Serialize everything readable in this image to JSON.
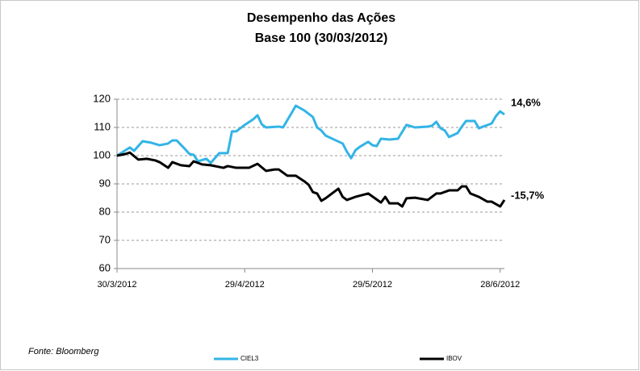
{
  "chart_data": {
    "type": "line",
    "title": "Desempenho das Ações",
    "subtitle": "Base 100 (30/03/2012)",
    "source": "Fonte: Bloomberg",
    "xlim": [
      "30/3/2012",
      "29/6/2012"
    ],
    "xticks": [
      "30/3/2012",
      "29/4/2012",
      "29/5/2012",
      "28/6/2012"
    ],
    "ylim": [
      60,
      120
    ],
    "yticks": [
      60,
      70,
      80,
      90,
      100,
      110,
      120
    ],
    "grid": true,
    "legend": "bottom",
    "series": [
      {
        "name": "CIEL3",
        "color": "#33b4e6",
        "end_label": "14,6%",
        "x": [
          "30/3/2012",
          "2/4/2012",
          "3/4/2012",
          "5/4/2012",
          "7/4/2012",
          "9/4/2012",
          "11/4/2012",
          "12/4/2012",
          "13/4/2012",
          "15/4/2012",
          "16/4/2012",
          "17/4/2012",
          "18/4/2012",
          "20/4/2012",
          "21/4/2012",
          "23/4/2012",
          "25/4/2012",
          "26/4/2012",
          "27/4/2012",
          "29/4/2012",
          "1/5/2012",
          "2/5/2012",
          "3/5/2012",
          "4/5/2012",
          "7/5/2012",
          "8/5/2012",
          "10/5/2012",
          "11/5/2012",
          "13/5/2012",
          "15/5/2012",
          "16/5/2012",
          "17/5/2012",
          "18/5/2012",
          "20/5/2012",
          "22/5/2012",
          "23/5/2012",
          "24/5/2012",
          "25/5/2012",
          "26/5/2012",
          "28/5/2012",
          "29/5/2012",
          "30/5/2012",
          "31/5/2012",
          "2/6/2012",
          "4/6/2012",
          "6/6/2012",
          "8/6/2012",
          "11/6/2012",
          "12/6/2012",
          "13/6/2012",
          "14/6/2012",
          "15/6/2012",
          "16/6/2012",
          "18/6/2012",
          "19/6/2012",
          "20/6/2012",
          "22/6/2012",
          "23/6/2012",
          "24/6/2012",
          "26/6/2012",
          "27/6/2012",
          "28/6/2012",
          "29/6/2012"
        ],
        "values": [
          100,
          102.9,
          101.7,
          105.1,
          104.6,
          103.7,
          104.3,
          105.4,
          105.4,
          102.3,
          100.6,
          100.3,
          98,
          98.9,
          97.4,
          100.9,
          100.9,
          108.6,
          108.6,
          110.9,
          112.9,
          114.3,
          111.1,
          110,
          110.3,
          110,
          115.1,
          117.7,
          116,
          113.7,
          110,
          108.9,
          107.1,
          105.7,
          104.3,
          101.4,
          99.1,
          101.9,
          103.1,
          104.9,
          103.7,
          103.4,
          106,
          105.7,
          106,
          110.9,
          110,
          110.3,
          110.6,
          112,
          109.7,
          108.9,
          106.6,
          108,
          110.3,
          112.3,
          112.3,
          109.7,
          110.3,
          111.4,
          114,
          115.7,
          114.6
        ]
      },
      {
        "name": "IBOV",
        "color": "#000000",
        "end_label": "-15,7%",
        "x": [
          "30/3/2012",
          "1/4/2012",
          "2/4/2012",
          "4/4/2012",
          "6/4/2012",
          "8/4/2012",
          "9/4/2012",
          "11/4/2012",
          "12/4/2012",
          "14/4/2012",
          "16/4/2012",
          "17/4/2012",
          "19/4/2012",
          "21/4/2012",
          "24/4/2012",
          "25/4/2012",
          "27/4/2012",
          "30/4/2012",
          "2/5/2012",
          "4/5/2012",
          "6/5/2012",
          "7/5/2012",
          "9/5/2012",
          "11/5/2012",
          "13/5/2012",
          "14/5/2012",
          "15/5/2012",
          "16/5/2012",
          "17/5/2012",
          "18/5/2012",
          "21/5/2012",
          "22/5/2012",
          "23/5/2012",
          "25/5/2012",
          "28/5/2012",
          "31/5/2012",
          "1/6/2012",
          "2/6/2012",
          "4/6/2012",
          "5/6/2012",
          "6/6/2012",
          "8/6/2012",
          "11/6/2012",
          "13/6/2012",
          "14/6/2012",
          "16/6/2012",
          "18/6/2012",
          "19/6/2012",
          "20/6/2012",
          "21/6/2012",
          "23/6/2012",
          "25/6/2012",
          "26/6/2012",
          "28/6/2012",
          "29/6/2012"
        ],
        "values": [
          100,
          100.6,
          101.1,
          98.6,
          98.9,
          98.3,
          97.7,
          95.7,
          97.7,
          96.6,
          96.3,
          98,
          96.9,
          96.6,
          95.7,
          96.3,
          95.7,
          95.7,
          97.1,
          94.6,
          95.1,
          95.1,
          92.9,
          92.9,
          90.9,
          89.7,
          87.1,
          86.6,
          84,
          84.9,
          88.3,
          85.4,
          84.3,
          85.4,
          86.6,
          83.4,
          85.4,
          83.1,
          83.1,
          82,
          84.9,
          85.1,
          84.3,
          86.6,
          86.6,
          87.7,
          87.7,
          89.1,
          89.1,
          86.6,
          85.4,
          83.7,
          83.7,
          82,
          84.3
        ]
      }
    ]
  }
}
